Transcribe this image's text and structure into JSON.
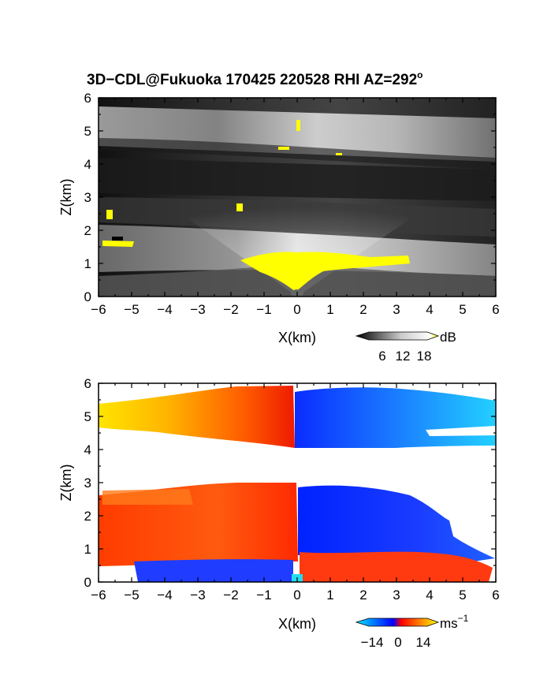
{
  "title_main": "3D−CDL@Fukuoka 170425 220528 RHI AZ=292",
  "title_deg": "o",
  "panels": [
    {
      "id": "reflectivity",
      "xlabel": "X(km)",
      "ylabel": "Z(km)",
      "colorbar": {
        "unit": "dB",
        "ticks": [
          "6",
          "12",
          "18"
        ],
        "colors": [
          "#000000",
          "#ffffff",
          "#ffff00"
        ]
      }
    },
    {
      "id": "velocity",
      "xlabel": "X(km)",
      "ylabel": "Z(km)",
      "colorbar": {
        "unit_base": "ms",
        "unit_exp": "−1",
        "ticks": [
          "−14",
          "0",
          "14"
        ],
        "colors": [
          "#00e0ff",
          "#0000ff",
          "#ff0000",
          "#ffff00"
        ]
      }
    }
  ],
  "chart_data": [
    {
      "type": "heatmap",
      "title": "3D−CDL@Fukuoka 170425 220528 RHI AZ=292°",
      "xlabel": "X(km)",
      "ylabel": "Z(km)",
      "xlim": [
        -6,
        6
      ],
      "ylim": [
        0,
        6
      ],
      "x_ticks": [
        "−6",
        "−5",
        "−4",
        "−3",
        "−2",
        "−1",
        "0",
        "1",
        "2",
        "3",
        "4",
        "5",
        "6"
      ],
      "y_ticks": [
        "0",
        "1",
        "2",
        "3",
        "4",
        "5",
        "6"
      ],
      "colorbar_label": "dB",
      "colorbar_ticks": [
        6,
        12,
        18
      ],
      "colorscale": "gray-yellow",
      "layers": [
        {
          "name": "upper bright layer",
          "x_range": [
            -6,
            6
          ],
          "z_range": [
            4.5,
            5.6
          ],
          "level_db": 11
        },
        {
          "name": "lower bright layer",
          "x_range": [
            -6,
            6
          ],
          "z_range": [
            0.5,
            2.2
          ],
          "level_db": 12
        },
        {
          "name": "strong echo near origin",
          "x_range": [
            -1.7,
            3.4
          ],
          "z_range": [
            0.3,
            1.3
          ],
          "level_db": 18
        }
      ]
    },
    {
      "type": "heatmap",
      "xlabel": "X(km)",
      "ylabel": "Z(km)",
      "xlim": [
        -6,
        6
      ],
      "ylim": [
        0,
        6
      ],
      "x_ticks": [
        "−6",
        "−5",
        "−4",
        "−3",
        "−2",
        "−1",
        "0",
        "1",
        "2",
        "3",
        "4",
        "5",
        "6"
      ],
      "y_ticks": [
        "0",
        "1",
        "2",
        "3",
        "4",
        "5",
        "6"
      ],
      "colorbar_label": "ms⁻¹",
      "colorbar_ticks": [
        -14,
        0,
        14
      ],
      "colorscale": "cyan-blue-red-yellow",
      "regions": [
        {
          "x_range": [
            -6,
            0
          ],
          "z_range": [
            4.5,
            5.9
          ],
          "velocity": 10
        },
        {
          "x_range": [
            0,
            6
          ],
          "z_range": [
            4.1,
            5.9
          ],
          "velocity": -10
        },
        {
          "x_range": [
            -6,
            0
          ],
          "z_range": [
            0.5,
            2.9
          ],
          "velocity": 5
        },
        {
          "x_range": [
            0,
            5.9
          ],
          "z_range": [
            0.5,
            2.8
          ],
          "velocity": -6
        },
        {
          "x_range": [
            -5,
            0
          ],
          "z_range": [
            0.1,
            0.5
          ],
          "velocity": -5
        },
        {
          "x_range": [
            0,
            5.7
          ],
          "z_range": [
            0.1,
            0.8
          ],
          "velocity": 5
        }
      ]
    }
  ]
}
